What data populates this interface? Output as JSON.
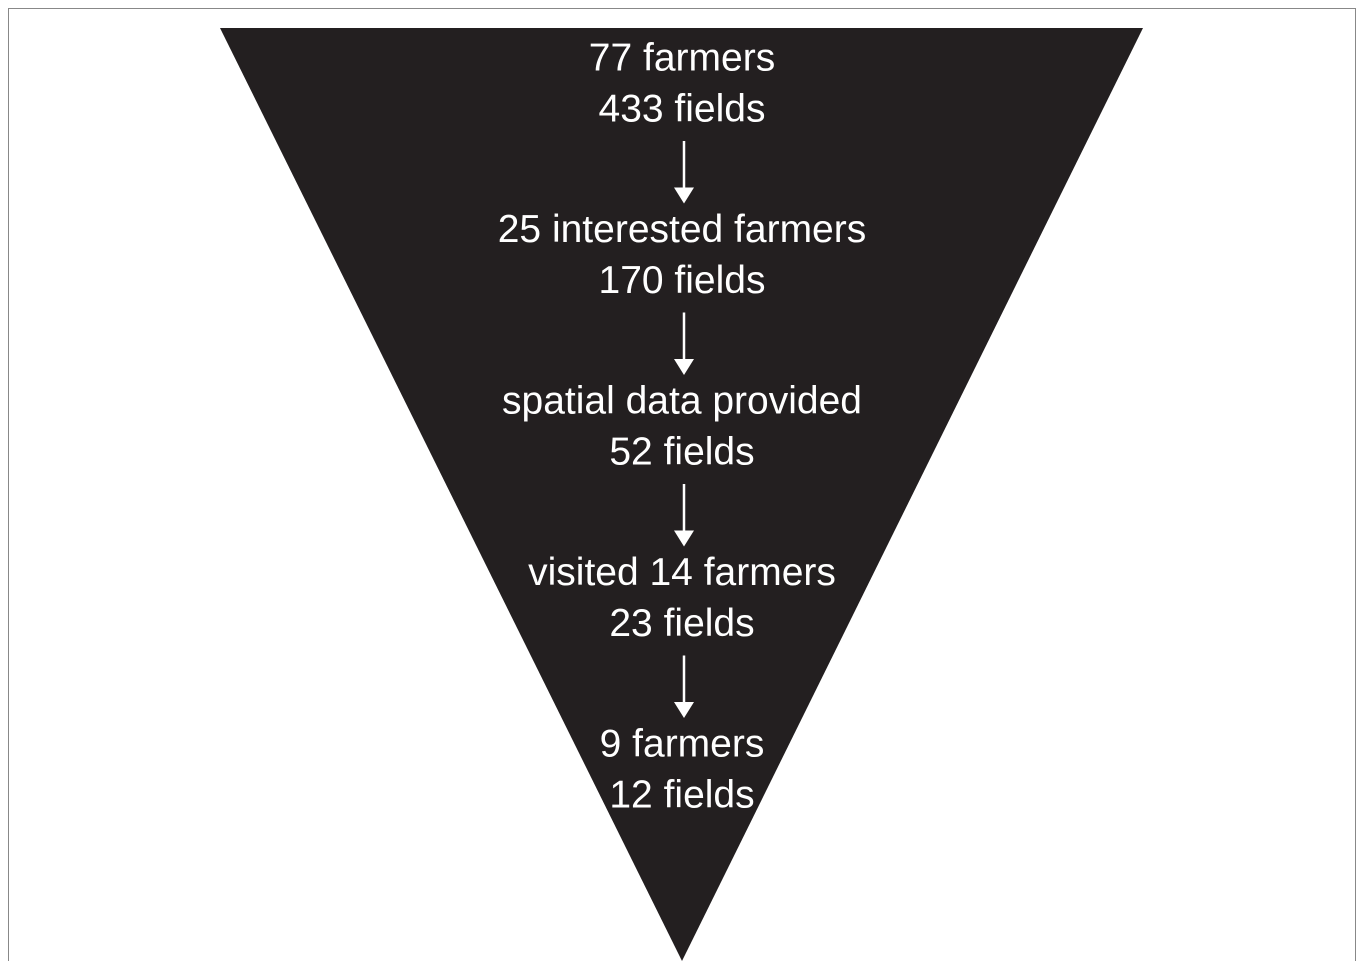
{
  "stages": [
    {
      "lines": [
        "77 farmers",
        "433 fields"
      ]
    },
    {
      "lines": [
        "25 interested farmers",
        "170 fields"
      ]
    },
    {
      "lines": [
        "spatial data provided",
        "52 fields"
      ]
    },
    {
      "lines": [
        "visited 14 farmers",
        "23 fields"
      ]
    },
    {
      "lines": [
        "9 farmers",
        "12 fields"
      ]
    }
  ]
}
